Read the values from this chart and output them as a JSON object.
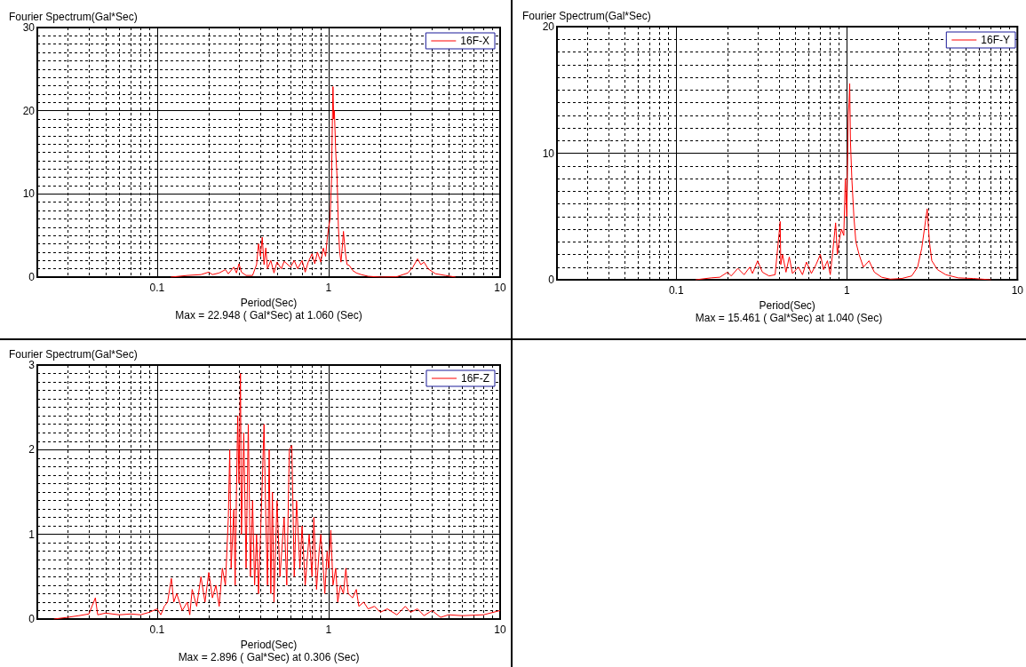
{
  "chart_data": [
    {
      "type": "line",
      "xlabel": "Period(Sec)",
      "ylabel": "Fourier Spectrum(Gal*Sec)",
      "annotations": [
        "Max = 22.948 ( Gal*Sec) at 1.060 (Sec)"
      ],
      "log": "x",
      "grid": true,
      "legend": "top right",
      "xlim": [
        0.02,
        10
      ],
      "ylim": [
        0,
        30
      ],
      "yticks": [
        0,
        10,
        20,
        30
      ],
      "xticks": [
        {
          "value": 0.02,
          "label": null
        },
        {
          "value": 0.03,
          "label": null
        },
        {
          "value": 0.04,
          "label": null
        },
        {
          "value": 0.05,
          "label": null
        },
        {
          "value": 0.06,
          "label": null
        },
        {
          "value": 0.07,
          "label": null
        },
        {
          "value": 0.08,
          "label": null
        },
        {
          "value": 0.09,
          "label": null
        },
        0.1,
        {
          "value": 0.2,
          "label": null
        },
        {
          "value": 0.3,
          "label": null
        },
        {
          "value": 0.4,
          "label": null
        },
        {
          "value": 0.5,
          "label": null
        },
        {
          "value": 0.6,
          "label": null
        },
        {
          "value": 0.7,
          "label": null
        },
        {
          "value": 0.8,
          "label": null
        },
        {
          "value": 0.9,
          "label": null
        },
        1,
        {
          "value": 2,
          "label": null
        },
        {
          "value": 3,
          "label": null
        },
        {
          "value": 4,
          "label": null
        },
        {
          "value": 5,
          "label": null
        },
        {
          "value": 6,
          "label": null
        },
        {
          "value": 7,
          "label": null
        },
        {
          "value": 8,
          "label": null
        },
        {
          "value": 9,
          "label": null
        },
        10
      ],
      "series": [
        {
          "name": "16F-X",
          "color": "#ff0000",
          "x": [
            0.12,
            0.15,
            0.18,
            0.2,
            0.21,
            0.23,
            0.25,
            0.26,
            0.28,
            0.29,
            0.3,
            0.31,
            0.33,
            0.36,
            0.38,
            0.39,
            0.4,
            0.41,
            0.42,
            0.43,
            0.44,
            0.46,
            0.48,
            0.5,
            0.53,
            0.55,
            0.6,
            0.63,
            0.66,
            0.7,
            0.73,
            0.76,
            0.8,
            0.83,
            0.86,
            0.9,
            0.93,
            0.96,
            0.98,
            1.0,
            1.02,
            1.04,
            1.05,
            1.06,
            1.07,
            1.08,
            1.1,
            1.12,
            1.14,
            1.16,
            1.18,
            1.2,
            1.22,
            1.25,
            1.28,
            1.32,
            1.38,
            1.45,
            1.55,
            1.7,
            2,
            2.5,
            2.9,
            3.1,
            3.3,
            3.45,
            3.6,
            3.8,
            4.2,
            4.8,
            5.5
          ],
          "values": [
            0,
            0.2,
            0.3,
            0.6,
            0.3,
            0.5,
            0.9,
            0.4,
            1.2,
            0.5,
            1.6,
            0.6,
            0.2,
            0.2,
            1.5,
            4,
            2.5,
            4.8,
            1.5,
            3.5,
            1,
            2,
            0.5,
            1.8,
            1,
            1.9,
            1.2,
            2,
            1,
            2,
            0.6,
            1.8,
            2.8,
            1.6,
            3,
            1.8,
            3.5,
            2.5,
            4.5,
            6,
            7,
            12,
            18,
            22.9,
            19,
            20,
            15,
            12,
            6,
            3,
            1.8,
            3.5,
            5.5,
            3,
            1.5,
            1.4,
            0.8,
            0.5,
            0.3,
            0.1,
            0,
            0.05,
            0.5,
            1.2,
            2.2,
            1.5,
            1.8,
            1,
            0.4,
            0.2,
            0
          ]
        }
      ]
    },
    {
      "type": "line",
      "xlabel": "Period(Sec)",
      "ylabel": "Fourier Spectrum(Gal*Sec)",
      "annotations": [
        "Max = 15.461 ( Gal*Sec) at 1.040 (Sec)"
      ],
      "log": "x",
      "grid": true,
      "legend": "top right",
      "xlim": [
        0.02,
        10
      ],
      "ylim": [
        0,
        20
      ],
      "yticks": [
        0,
        10,
        20
      ],
      "xticks": [
        {
          "value": 0.02,
          "label": null
        },
        {
          "value": 0.03,
          "label": null
        },
        {
          "value": 0.04,
          "label": null
        },
        {
          "value": 0.05,
          "label": null
        },
        {
          "value": 0.06,
          "label": null
        },
        {
          "value": 0.07,
          "label": null
        },
        {
          "value": 0.08,
          "label": null
        },
        {
          "value": 0.09,
          "label": null
        },
        0.1,
        {
          "value": 0.2,
          "label": null
        },
        {
          "value": 0.3,
          "label": null
        },
        {
          "value": 0.4,
          "label": null
        },
        {
          "value": 0.5,
          "label": null
        },
        {
          "value": 0.6,
          "label": null
        },
        {
          "value": 0.7,
          "label": null
        },
        {
          "value": 0.8,
          "label": null
        },
        {
          "value": 0.9,
          "label": null
        },
        1,
        {
          "value": 2,
          "label": null
        },
        {
          "value": 3,
          "label": null
        },
        {
          "value": 4,
          "label": null
        },
        {
          "value": 5,
          "label": null
        },
        {
          "value": 6,
          "label": null
        },
        {
          "value": 7,
          "label": null
        },
        {
          "value": 8,
          "label": null
        },
        {
          "value": 9,
          "label": null
        },
        10
      ],
      "series": [
        {
          "name": "16F-Y",
          "color": "#ff0000",
          "x": [
            0.13,
            0.16,
            0.18,
            0.2,
            0.21,
            0.23,
            0.25,
            0.27,
            0.28,
            0.3,
            0.32,
            0.35,
            0.38,
            0.407,
            0.41,
            0.42,
            0.44,
            0.46,
            0.48,
            0.52,
            0.55,
            0.58,
            0.62,
            0.66,
            0.7,
            0.73,
            0.77,
            0.8,
            0.83,
            0.86,
            0.88,
            0.9,
            0.93,
            0.96,
            0.98,
            1.0,
            1.02,
            1.03,
            1.04,
            1.05,
            1.07,
            1.1,
            1.13,
            1.18,
            1.25,
            1.35,
            1.45,
            1.6,
            1.8,
            2.1,
            2.4,
            2.6,
            2.75,
            2.85,
            2.96,
            3.05,
            3.15,
            3.4,
            3.8,
            4.5,
            5.5,
            7
          ],
          "values": [
            0,
            0.15,
            0.2,
            0.6,
            0.3,
            0.9,
            0.4,
            1,
            0.5,
            1.5,
            0.6,
            0.3,
            0.4,
            4.6,
            1.2,
            2,
            0.6,
            1.8,
            0.5,
            1,
            0.4,
            1.4,
            0.5,
            1.2,
            2,
            0.8,
            1.5,
            0.4,
            2.4,
            4.5,
            2,
            3,
            4,
            3.5,
            8,
            5,
            13,
            14,
            15.5,
            11,
            8,
            5,
            3,
            2,
            1,
            1.5,
            0.6,
            0.2,
            0.05,
            0.1,
            0.3,
            1,
            2.5,
            4,
            5.6,
            3,
            1.5,
            0.8,
            0.4,
            0.15,
            0.1,
            0
          ]
        }
      ]
    },
    {
      "type": "line",
      "xlabel": "Period(Sec)",
      "ylabel": "Fourier Spectrum(Gal*Sec)",
      "annotations": [
        "Max = 2.896 ( Gal*Sec) at 0.306 (Sec)"
      ],
      "log": "x",
      "grid": true,
      "legend": "top right",
      "xlim": [
        0.02,
        10
      ],
      "ylim": [
        0,
        3
      ],
      "yticks": [
        0,
        1,
        2,
        3
      ],
      "xticks": [
        {
          "value": 0.02,
          "label": null
        },
        {
          "value": 0.03,
          "label": null
        },
        {
          "value": 0.04,
          "label": null
        },
        {
          "value": 0.05,
          "label": null
        },
        {
          "value": 0.06,
          "label": null
        },
        {
          "value": 0.07,
          "label": null
        },
        {
          "value": 0.08,
          "label": null
        },
        {
          "value": 0.09,
          "label": null
        },
        0.1,
        {
          "value": 0.2,
          "label": null
        },
        {
          "value": 0.3,
          "label": null
        },
        {
          "value": 0.4,
          "label": null
        },
        {
          "value": 0.5,
          "label": null
        },
        {
          "value": 0.6,
          "label": null
        },
        {
          "value": 0.7,
          "label": null
        },
        {
          "value": 0.8,
          "label": null
        },
        {
          "value": 0.9,
          "label": null
        },
        1,
        {
          "value": 2,
          "label": null
        },
        {
          "value": 3,
          "label": null
        },
        {
          "value": 4,
          "label": null
        },
        {
          "value": 5,
          "label": null
        },
        {
          "value": 6,
          "label": null
        },
        {
          "value": 7,
          "label": null
        },
        {
          "value": 8,
          "label": null
        },
        {
          "value": 9,
          "label": null
        },
        10
      ],
      "series": [
        {
          "name": "16F-Z",
          "color": "#ff0000",
          "x": [
            0.025,
            0.03,
            0.035,
            0.04,
            0.0436,
            0.045,
            0.05,
            0.06,
            0.07,
            0.08,
            0.09,
            0.1,
            0.105,
            0.11,
            0.115,
            0.121,
            0.125,
            0.13,
            0.14,
            0.15,
            0.155,
            0.16,
            0.17,
            0.18,
            0.19,
            0.2,
            0.21,
            0.22,
            0.23,
            0.24,
            0.25,
            0.26,
            0.265,
            0.27,
            0.28,
            0.285,
            0.29,
            0.295,
            0.3,
            0.306,
            0.31,
            0.32,
            0.33,
            0.34,
            0.35,
            0.36,
            0.37,
            0.38,
            0.39,
            0.41,
            0.42,
            0.43,
            0.44,
            0.45,
            0.46,
            0.47,
            0.48,
            0.5,
            0.52,
            0.55,
            0.57,
            0.59,
            0.61,
            0.63,
            0.65,
            0.68,
            0.7,
            0.73,
            0.77,
            0.8,
            0.82,
            0.85,
            0.88,
            0.9,
            0.93,
            0.95,
            0.98,
            1.0,
            1.03,
            1.06,
            1.1,
            1.13,
            1.17,
            1.22,
            1.26,
            1.3,
            1.38,
            1.45,
            1.5,
            1.6,
            1.7,
            1.85,
            2,
            2.2,
            2.5,
            2.8,
            3.0,
            3.3,
            3.6,
            4,
            4.5,
            5,
            6,
            8,
            10
          ],
          "values": [
            0,
            0.02,
            0.04,
            0.06,
            0.25,
            0.05,
            0.07,
            0.05,
            0.06,
            0.05,
            0.08,
            0.12,
            0.05,
            0.15,
            0.2,
            0.48,
            0.2,
            0.3,
            0.1,
            0.2,
            0.05,
            0.35,
            0.15,
            0.5,
            0.2,
            0.55,
            0.25,
            0.4,
            0.15,
            0.6,
            0.4,
            1.2,
            2.0,
            0.6,
            1.3,
            0.4,
            1.5,
            2.4,
            1.6,
            2.9,
            1.0,
            2.2,
            0.6,
            2.3,
            0.5,
            1.4,
            0.4,
            1.0,
            0.3,
            1.6,
            2.3,
            1.2,
            0.4,
            2.0,
            0.3,
            1.5,
            0.2,
            1.4,
            0.5,
            1.2,
            0.4,
            2.0,
            2.05,
            0.5,
            1.4,
            0.6,
            1.1,
            0.4,
            1.0,
            0.5,
            1.2,
            0.35,
            0.8,
            1.0,
            0.6,
            0.3,
            0.8,
            0.6,
            1.05,
            0.4,
            0.6,
            0.2,
            0.4,
            0.3,
            0.6,
            0.3,
            0.25,
            0.35,
            0.15,
            0.2,
            0.12,
            0.15,
            0.08,
            0.12,
            0.05,
            0.15,
            0.08,
            0.12,
            0.04,
            0.1,
            0.02,
            0.05,
            0.04,
            0.05,
            0.1
          ]
        }
      ]
    }
  ]
}
